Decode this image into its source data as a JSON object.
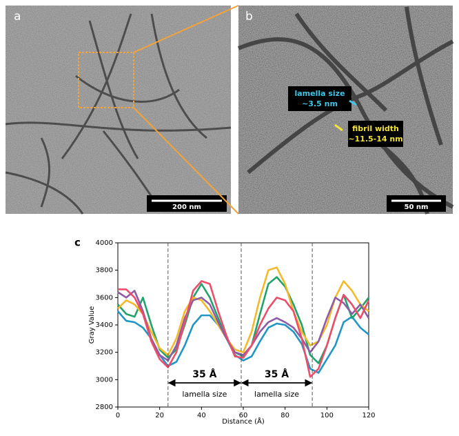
{
  "panel_a": {
    "label": "a",
    "scale_bar": "200 nm"
  },
  "panel_b": {
    "label": "b",
    "scale_bar": "50 nm",
    "annotations": [
      {
        "lines": [
          "lamella size",
          "~3.5 nm"
        ],
        "color": "#3fc6e8"
      },
      {
        "lines": [
          "fibril width",
          "~11.5-14 nm"
        ],
        "color": "#f2e23a"
      }
    ]
  },
  "chart_data": {
    "type": "line",
    "label": "c",
    "x_label": "Distance (Å)",
    "y_label": "Gray Value",
    "x": [
      0,
      4,
      8,
      12,
      16,
      20,
      24,
      28,
      32,
      36,
      40,
      44,
      48,
      52,
      56,
      60,
      64,
      68,
      72,
      76,
      80,
      84,
      88,
      92,
      96,
      100,
      104,
      108,
      112,
      116,
      120
    ],
    "series": [
      {
        "color": "#1f96c6",
        "values": [
          3500,
          3430,
          3420,
          3380,
          3300,
          3180,
          3100,
          3130,
          3250,
          3400,
          3470,
          3470,
          3400,
          3300,
          3180,
          3140,
          3170,
          3280,
          3380,
          3410,
          3400,
          3350,
          3260,
          3080,
          3050,
          3150,
          3250,
          3420,
          3460,
          3380,
          3330
        ]
      },
      {
        "color": "#1fa36a",
        "values": [
          3550,
          3480,
          3460,
          3600,
          3400,
          3220,
          3160,
          3220,
          3400,
          3600,
          3700,
          3600,
          3450,
          3300,
          3200,
          3170,
          3250,
          3480,
          3700,
          3750,
          3680,
          3550,
          3400,
          3180,
          3120,
          3250,
          3450,
          3620,
          3450,
          3520,
          3600
        ]
      },
      {
        "color": "#f4b928",
        "values": [
          3520,
          3580,
          3550,
          3480,
          3350,
          3230,
          3180,
          3300,
          3500,
          3600,
          3580,
          3500,
          3400,
          3300,
          3220,
          3200,
          3350,
          3600,
          3800,
          3820,
          3700,
          3500,
          3350,
          3250,
          3280,
          3400,
          3600,
          3720,
          3650,
          3550,
          3500
        ]
      },
      {
        "color": "#8e5ba6",
        "values": [
          3640,
          3600,
          3650,
          3500,
          3300,
          3180,
          3140,
          3250,
          3450,
          3580,
          3600,
          3550,
          3420,
          3300,
          3200,
          3180,
          3250,
          3350,
          3420,
          3450,
          3420,
          3380,
          3300,
          3200,
          3280,
          3450,
          3600,
          3560,
          3480,
          3550,
          3450
        ]
      },
      {
        "color": "#ee4d6a",
        "values": [
          3660,
          3660,
          3600,
          3480,
          3280,
          3150,
          3090,
          3200,
          3420,
          3650,
          3720,
          3700,
          3500,
          3320,
          3170,
          3160,
          3250,
          3400,
          3520,
          3600,
          3580,
          3500,
          3300,
          3020,
          3080,
          3250,
          3450,
          3620,
          3550,
          3450,
          3580
        ]
      }
    ],
    "xlim": [
      0,
      120
    ],
    "xticks": [
      0,
      20,
      40,
      60,
      80,
      100,
      120
    ],
    "ylim": [
      2800,
      4000
    ],
    "yticks": [
      2800,
      3000,
      3200,
      3400,
      3600,
      3800,
      4000
    ],
    "vlines": [
      24,
      59,
      93
    ],
    "spans": [
      {
        "label": "35 Å",
        "note": "lamella size"
      },
      {
        "label": "35 Å",
        "note": "lamella size"
      }
    ]
  }
}
